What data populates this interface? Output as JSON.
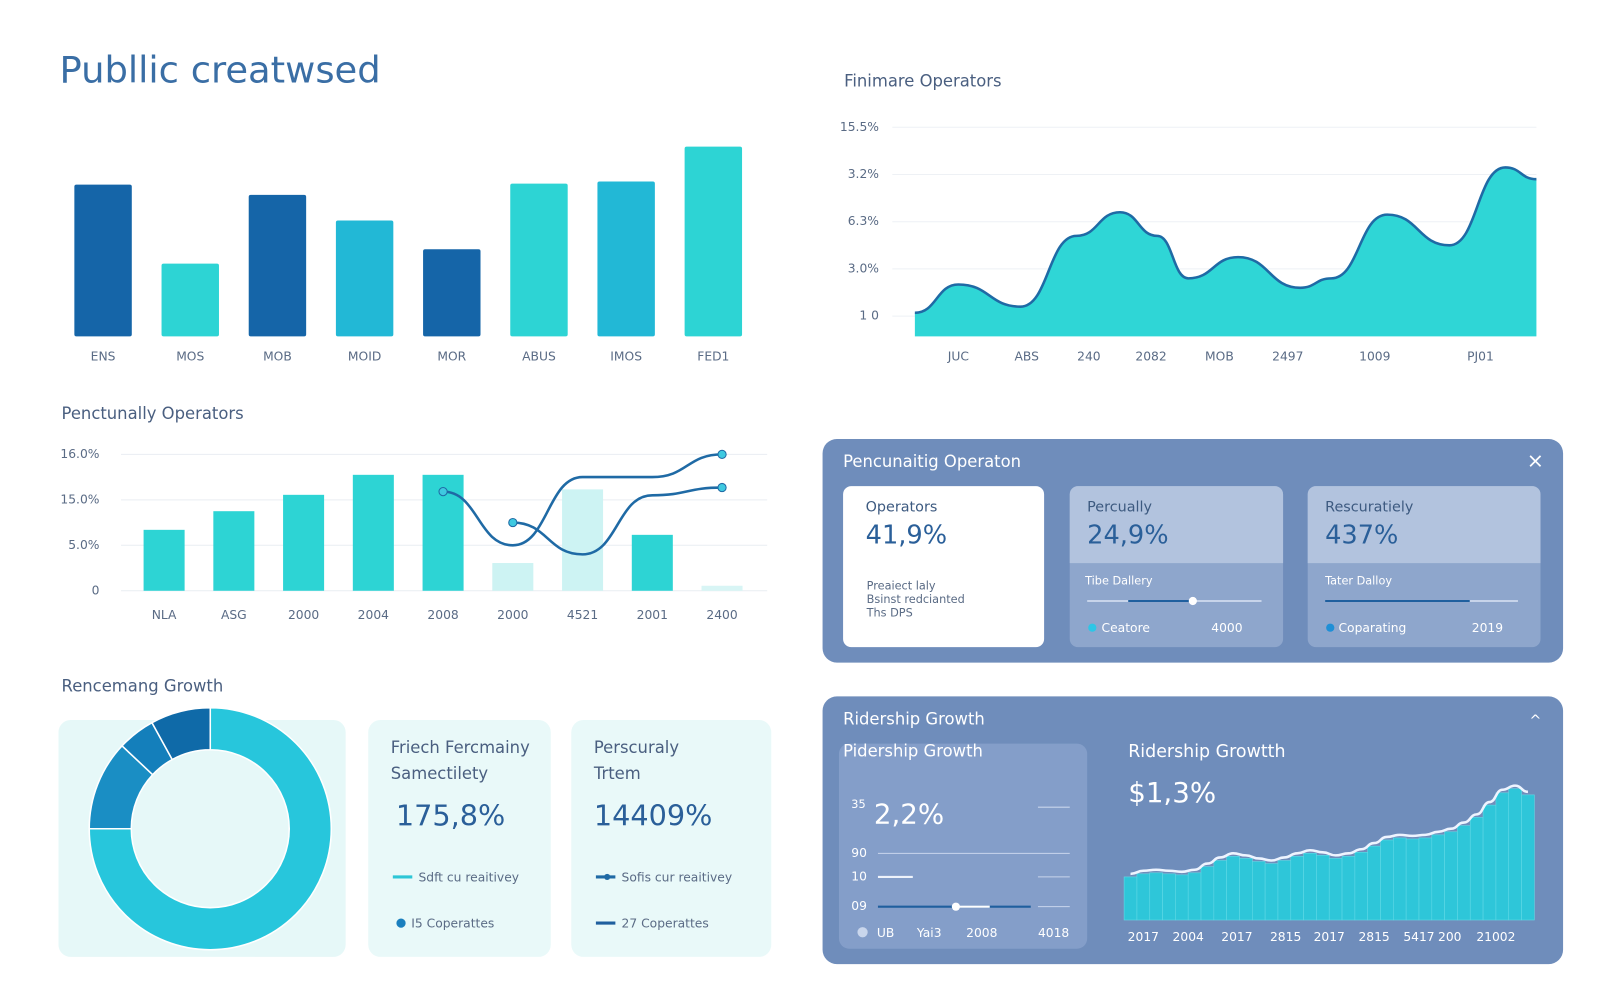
{
  "title": "Publlic creatwsed",
  "chart_data": [
    {
      "type": "bar",
      "categories": [
        "ENS",
        "MOS",
        "MOB",
        "MOID",
        "MOR",
        "ABUS",
        "IMOS",
        "FED1"
      ],
      "values": [
        148,
        71,
        138,
        113,
        85,
        149,
        151,
        185
      ],
      "colors": [
        "#1565a8",
        "#2dd4d4",
        "#1565a8",
        "#22b8d6",
        "#1565a8",
        "#2dd4d4",
        "#22b8d6",
        "#2dd4d4"
      ],
      "ylim": [
        0,
        200
      ]
    },
    {
      "type": "area",
      "title": "Finimare Operators",
      "x": [
        0,
        7,
        17,
        26,
        33,
        39,
        44,
        52,
        62,
        67,
        76,
        86,
        95,
        100
      ],
      "values": [
        0.07,
        0.67,
        0.2,
        1.7,
        2.2,
        1.7,
        0.8,
        1.25,
        0.6,
        0.8,
        2.15,
        1.5,
        3.15,
        2.9
      ],
      "color": "#2fd6d6",
      "line_color": "#1f6aa5",
      "xlim": [
        0,
        100
      ],
      "xticks": [
        {
          "value": 7,
          "label": "JUC"
        },
        {
          "value": 18,
          "label": "ABS"
        },
        {
          "value": 28,
          "label": "240"
        },
        {
          "value": 38,
          "label": "2082"
        },
        {
          "value": 49,
          "label": "MOB"
        },
        {
          "value": 60,
          "label": "2497"
        },
        {
          "value": 74,
          "label": "1009"
        },
        {
          "value": 91,
          "label": "PJ01"
        }
      ],
      "ylim": [
        -0.43,
        4.35
      ],
      "yticks": [
        {
          "value": 0,
          "label": "1  0"
        },
        {
          "value": 1,
          "label": "3.0%"
        },
        {
          "value": 2,
          "label": "6.3%"
        },
        {
          "value": 3,
          "label": "3.2%"
        },
        {
          "value": 4,
          "label": "15.5%"
        }
      ],
      "grid": true
    },
    {
      "type": "combo",
      "title": "Penctunally Operators",
      "categories": [
        "NLA",
        "ASG",
        "2000",
        "2004",
        "2008",
        "2000",
        "4521",
        "2001",
        "2400"
      ],
      "values": [
        1.34,
        1.75,
        2.11,
        2.55,
        2.55,
        0.61,
        2.23,
        1.23,
        0.11
      ],
      "colors": [
        "#2dd4d4",
        "#2dd4d4",
        "#2dd4d4",
        "#2dd4d4",
        "#2dd4d4",
        "#cdf3f3",
        "#cdf3f3",
        "#2dd4d4",
        "#d8f5f5"
      ],
      "series": [
        {
          "color": "#1f6aa5",
          "values": [
            null,
            null,
            null,
            null,
            2.18,
            1.0,
            2.5,
            2.5,
            3.0
          ]
        },
        {
          "color": "#1f6aa5",
          "values": [
            null,
            null,
            null,
            null,
            null,
            1.5,
            0.8,
            2.1,
            2.27
          ]
        }
      ],
      "ylim": [
        0,
        3.2
      ],
      "yticks": [
        {
          "value": 0,
          "label": "0"
        },
        {
          "value": 1,
          "label": "5.0%"
        },
        {
          "value": 2,
          "label": "15.0%"
        },
        {
          "value": 3,
          "label": "16.0%"
        }
      ],
      "grid": true
    },
    {
      "type": "pie",
      "title": "Rencemang Growth",
      "values": [
        75,
        12,
        5,
        8
      ],
      "colors": [
        "#27c6dc",
        "#1a8ec4",
        "#147fbb",
        "#0f6aa8"
      ]
    },
    {
      "type": "bar",
      "x": [
        0,
        1,
        2,
        3,
        4,
        5,
        6,
        7,
        8,
        9,
        10,
        11,
        12,
        13,
        14,
        15,
        16,
        17,
        18,
        19,
        20,
        21,
        22,
        23,
        24,
        25,
        26,
        27,
        28,
        29,
        30,
        31
      ],
      "values": [
        42,
        45,
        46,
        45,
        44,
        46,
        52,
        58,
        62,
        60,
        57,
        55,
        58,
        62,
        65,
        63,
        60,
        62,
        66,
        72,
        78,
        80,
        79,
        80,
        83,
        86,
        92,
        100,
        112,
        124,
        128,
        122
      ],
      "color": "#2ec6d9",
      "line_color": "#eef4ff",
      "xlim": [
        -0.5,
        31.5
      ],
      "ylim": [
        0,
        140
      ],
      "xticks": [
        {
          "value": 1,
          "label": "2017"
        },
        {
          "value": 4.5,
          "label": "2004"
        },
        {
          "value": 8.3,
          "label": "2017"
        },
        {
          "value": 12.1,
          "label": "2815"
        },
        {
          "value": 15.5,
          "label": "2017"
        },
        {
          "value": 19,
          "label": "2815"
        },
        {
          "value": 22.5,
          "label": "5417"
        },
        {
          "value": 24.9,
          "label": "200"
        },
        {
          "value": 28.5,
          "label": "21002"
        }
      ]
    }
  ],
  "cards": [
    {
      "heading": [
        "Friech Fercmainy",
        "Samectilety"
      ],
      "value": "175,8%",
      "legend": [
        "Sdft cu reaitivey",
        "I5 Coperattes"
      ]
    },
    {
      "heading": [
        "Perscuraly",
        "Trtem"
      ],
      "value": "14409%",
      "legend": [
        "Sofis cur reaitivey",
        "27 Coperattes"
      ]
    }
  ],
  "panel_operators": {
    "title": "Pencunaitig Operaton",
    "close": "×",
    "cards": [
      {
        "label": "Operators",
        "value": "41,9%",
        "note": [
          "Preaiect laly",
          "Bsinst redcianted",
          "Ths DPS"
        ]
      },
      {
        "label": "Percually",
        "value": "24,9%",
        "slider": "Tibe Dallery",
        "legend": "Ceatore",
        "year": "4000"
      },
      {
        "label": "Rescuratiely",
        "value": "437%",
        "slider": "Tater Dalloy",
        "legend": "Coparating",
        "year": "2019"
      }
    ]
  },
  "panel_ridership": {
    "title": "Ridership Growth",
    "toggle": "^",
    "left": {
      "title": "Pidership Growth",
      "superscript": "35",
      "value": "2,2%",
      "rows": [
        "90",
        "10",
        "09"
      ],
      "footer": [
        "UB",
        "Yai3",
        "2008",
        "4018"
      ]
    },
    "right": {
      "title": "Ridership Growtth",
      "value": "$1,3%"
    }
  }
}
